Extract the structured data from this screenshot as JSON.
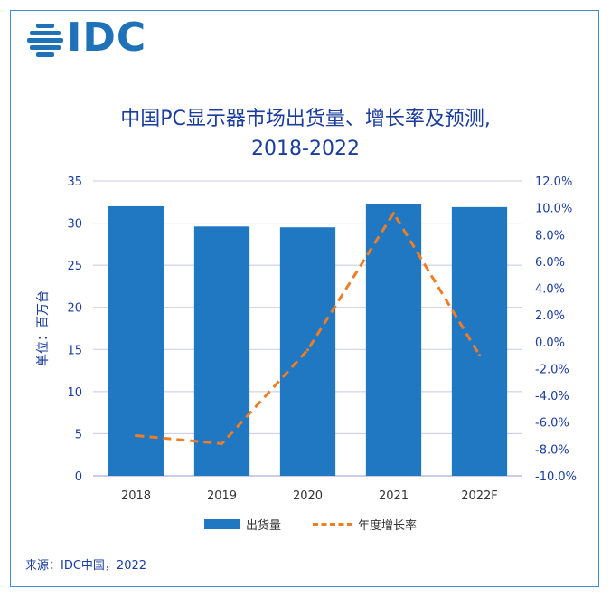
{
  "logo": {
    "text": "IDC"
  },
  "title_line1": "中国PC显示器市场出货量、增长率及预测,",
  "title_line2": "2018-2022",
  "source": "来源：IDC中国，2022",
  "colors": {
    "bar": "#1f78c1",
    "line": "#f07d24",
    "text": "#1a3d9e",
    "grid": "#c8c8e6"
  },
  "chart_data": {
    "type": "bar",
    "categories": [
      "2018",
      "2019",
      "2020",
      "2021",
      "2022F"
    ],
    "series": [
      {
        "name": "出货量",
        "type": "bar",
        "axis": "left",
        "values": [
          32.0,
          29.6,
          29.5,
          32.3,
          31.9
        ]
      },
      {
        "name": "年度增长率",
        "type": "line",
        "style": "dashed",
        "axis": "right",
        "values": [
          -7.0,
          -7.6,
          -0.6,
          9.6,
          -1.0
        ]
      }
    ],
    "ylabel": "单位：百万台",
    "ylim": [
      0,
      35
    ],
    "yticks": [
      "0",
      "5",
      "10",
      "15",
      "20",
      "25",
      "30",
      "35"
    ],
    "y2lim": [
      -10,
      12
    ],
    "y2ticks": [
      "-10.0%",
      "-8.0%",
      "-6.0%",
      "-4.0%",
      "-2.0%",
      "0.0%",
      "2.0%",
      "4.0%",
      "6.0%",
      "8.0%",
      "10.0%",
      "12.0%"
    ],
    "grid": true,
    "legend": "bottom"
  }
}
